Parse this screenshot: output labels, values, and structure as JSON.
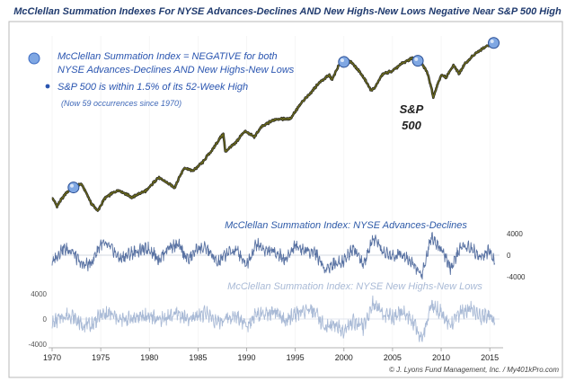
{
  "title": "McClellan Summation Indexes For NYSE Advances-Declines AND New Highs-New Lows Negative Near S&P 500 High",
  "legend": {
    "line1": "McClellan Summation Index = NEGATIVE for both",
    "line2": "NYSE Advances-Declines AND New Highs-New Lows",
    "line3": "S&P 500 is within 1.5% of its 52-Week High",
    "note": "(Now 59 occurrences since 1970)"
  },
  "sp_label": {
    "line1": "S&P",
    "line2": "500"
  },
  "credit": "© J. Lyons Fund Management, Inc. / My401kPro.com",
  "colors": {
    "title": "#1f3a6e",
    "legend_text": "#2a55b0",
    "sp500_line": "#6b6a1a",
    "ad_line": "#5a73a3",
    "nhnl_line": "#a9bad6",
    "frame": "#b8b8b8",
    "signal_marker": "#7fa7e3"
  },
  "chart_data": [
    {
      "type": "line",
      "name": "S&P 500 (log scale)",
      "y_scale": "log",
      "axis_labels_shown": false,
      "x": [
        1970,
        1970.5,
        1971.5,
        1972.5,
        1973,
        1974,
        1974.7,
        1975.5,
        1976.8,
        1978.2,
        1979.8,
        1980.9,
        1982.6,
        1983.6,
        1984.5,
        1985.5,
        1986.5,
        1987.6,
        1987.8,
        1988.8,
        1989.8,
        1990.8,
        1991.5,
        1993,
        1994.5,
        1995.5,
        1996.5,
        1997.5,
        1998.5,
        1998.8,
        1999.5,
        2000.2,
        2000.7,
        2001.7,
        2002.8,
        2003.2,
        2004,
        2005,
        2006,
        2007,
        2007.8,
        2008.5,
        2009.2,
        2010,
        2010.5,
        2011.3,
        2011.8,
        2012.5,
        2013.5,
        2014.5,
        2015.4
      ],
      "y": [
        90,
        75,
        100,
        115,
        118,
        80,
        68,
        90,
        105,
        90,
        105,
        135,
        110,
        165,
        155,
        185,
        240,
        330,
        230,
        270,
        350,
        310,
        380,
        450,
        450,
        600,
        750,
        950,
        1100,
        1000,
        1350,
        1480,
        1450,
        1150,
        800,
        850,
        1130,
        1200,
        1400,
        1560,
        1450,
        1200,
        700,
        1100,
        1050,
        1350,
        1130,
        1400,
        1700,
        1950,
        2130
      ]
    },
    {
      "type": "line",
      "name": "McClellan Summation Index: NYSE Advances-Declines",
      "x": [
        1970,
        1971,
        1972,
        1973,
        1974,
        1975,
        1976,
        1977,
        1978,
        1979,
        1980,
        1981,
        1982,
        1983,
        1984,
        1985,
        1986,
        1987,
        1988,
        1989,
        1990,
        1991,
        1992,
        1993,
        1994,
        1995,
        1996,
        1997,
        1998,
        1999,
        2000,
        2001,
        2002,
        2003,
        2004,
        2005,
        2006,
        2007,
        2008,
        2009,
        2010,
        2011,
        2012,
        2013,
        2014,
        2015,
        2015.5
      ],
      "y": [
        -1500,
        1200,
        900,
        -1800,
        -1600,
        2200,
        1400,
        -700,
        300,
        900,
        1200,
        -800,
        1600,
        1800,
        -900,
        1400,
        1100,
        -1600,
        500,
        900,
        -1700,
        2100,
        800,
        600,
        -900,
        1900,
        800,
        700,
        -2500,
        -1600,
        -1000,
        1500,
        -2000,
        3100,
        600,
        -300,
        500,
        -1400,
        -3800,
        3600,
        1000,
        -2500,
        1500,
        1400,
        -400,
        800,
        -1500
      ],
      "yticks": [
        4000,
        0,
        -4000
      ]
    },
    {
      "type": "line",
      "name": "McClellan Summation Index: NYSE New Highs-New Lows",
      "x": [
        1970,
        1971,
        1972,
        1973,
        1974,
        1975,
        1976,
        1977,
        1978,
        1979,
        1980,
        1981,
        1982,
        1983,
        1984,
        1985,
        1986,
        1987,
        1988,
        1989,
        1990,
        1991,
        1992,
        1993,
        1994,
        1995,
        1996,
        1997,
        1998,
        1999,
        2000,
        2001,
        2002,
        2003,
        2004,
        2005,
        2006,
        2007,
        2008,
        2009,
        2010,
        2011,
        2012,
        2013,
        2014,
        2015,
        2015.5
      ],
      "y": [
        -800,
        400,
        600,
        -900,
        -1000,
        600,
        800,
        -200,
        100,
        300,
        500,
        -200,
        400,
        900,
        -300,
        700,
        900,
        -600,
        200,
        400,
        -900,
        700,
        600,
        1000,
        -500,
        900,
        1100,
        1300,
        -1400,
        -900,
        -1700,
        -400,
        -1300,
        2500,
        900,
        300,
        1200,
        -200,
        -3300,
        2400,
        900,
        -1000,
        1100,
        1700,
        300,
        900,
        -400
      ],
      "yticks": [
        4000,
        0,
        -4000
      ]
    }
  ],
  "signals": [
    1972.2,
    2000.0,
    2007.6,
    2015.4
  ],
  "xaxis": {
    "range": [
      1970,
      2016
    ],
    "ticks": [
      "1970",
      "1975",
      "1980",
      "1985",
      "1990",
      "1995",
      "2000",
      "2005",
      "2010",
      "2015"
    ]
  },
  "panel_labels": {
    "ad": "McClellan Summation Index: NYSE Advances-Declines",
    "nhnl": "McClellan Summation Index: NYSE New Highs-New Lows"
  }
}
